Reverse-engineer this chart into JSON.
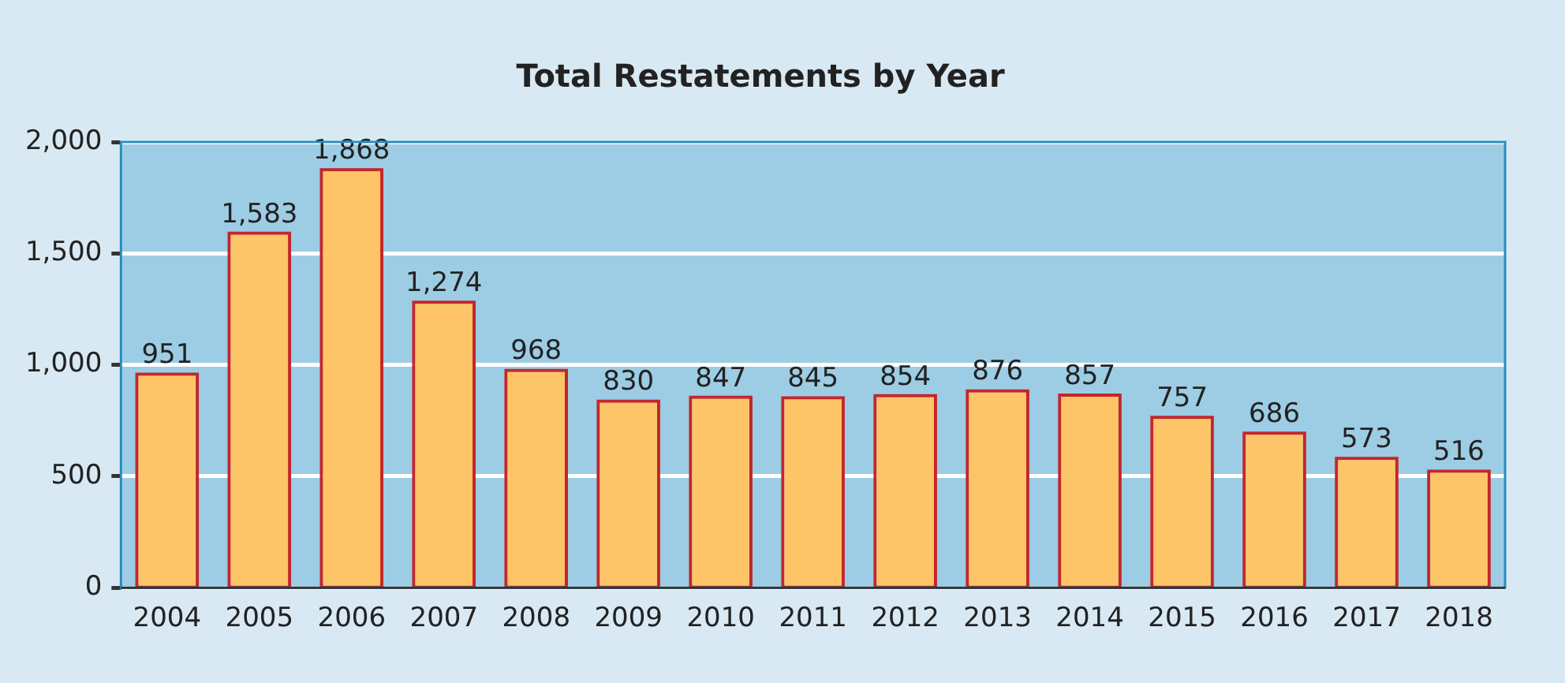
{
  "chart_data": {
    "type": "bar",
    "title": "Total Restatements by Year",
    "categories": [
      "2004",
      "2005",
      "2006",
      "2007",
      "2008",
      "2009",
      "2010",
      "2011",
      "2012",
      "2013",
      "2014",
      "2015",
      "2016",
      "2017",
      "2018"
    ],
    "values": [
      951,
      1583,
      1868,
      1274,
      968,
      830,
      847,
      845,
      854,
      876,
      857,
      757,
      686,
      573,
      516
    ],
    "value_labels": [
      "951",
      "1,583",
      "1,868",
      "1,274",
      "968",
      "830",
      "847",
      "845",
      "854",
      "876",
      "857",
      "757",
      "686",
      "573",
      "516"
    ],
    "color": "#fdc468",
    "ylim": [
      0,
      2000
    ],
    "yticks": [
      0,
      {
        "value": 500,
        "label": "500"
      },
      {
        "value": 1000,
        "label": "1,000"
      },
      {
        "value": 1500,
        "label": "1,500"
      },
      {
        "value": 2000,
        "label": "2,000"
      }
    ],
    "grid": "y",
    "legend": false
  }
}
